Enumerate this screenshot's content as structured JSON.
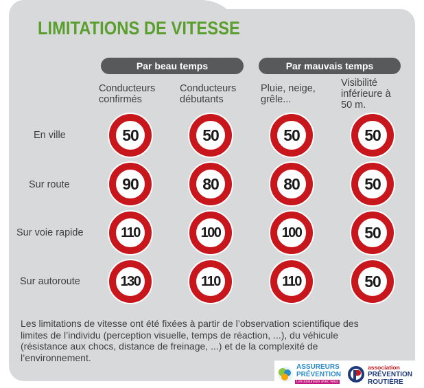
{
  "title": "LIMITATIONS DE VITESSE",
  "groups": [
    {
      "label": "Par beau temps"
    },
    {
      "label": "Par mauvais temps"
    }
  ],
  "columns": [
    {
      "label": "Conducteurs\nconfirmés"
    },
    {
      "label": "Conducteurs\ndébutants"
    },
    {
      "label": "Pluie, neige,\ngrêle..."
    },
    {
      "label": "Visibilité\ninférieure à\n50 m."
    }
  ],
  "rows": [
    {
      "label": "En ville",
      "limits": [
        "50",
        "50",
        "50",
        "50"
      ]
    },
    {
      "label": "Sur route",
      "limits": [
        "90",
        "80",
        "80",
        "50"
      ]
    },
    {
      "label": "Sur voie rapide",
      "limits": [
        "110",
        "100",
        "100",
        "50"
      ]
    },
    {
      "label": "Sur autoroute",
      "limits": [
        "130",
        "110",
        "110",
        "50"
      ]
    }
  ],
  "footer": "Les limitations de vitesse ont été fixées à partir de l’observation scientifique des limites de l’individu (perception visuelle, temps de réaction, ...), du véhicule (résistance aux chocs, distance de freinage, ...) et de la complexité de l’environnement.",
  "logos": {
    "assureurs_line1": "ASSUREURS",
    "assureurs_line2": "PRÉVENTION",
    "assureurs_tagline": "Les assureurs avec vous",
    "prevention_line1": "association",
    "prevention_line2": "PRÉVENTION",
    "prevention_line3": "ROUTIÈRE"
  },
  "colors": {
    "title_green": "#5a9e2e",
    "sign_red": "#c8161d",
    "pill_gray": "#58595b",
    "panel_gray": "#d7d9da"
  }
}
